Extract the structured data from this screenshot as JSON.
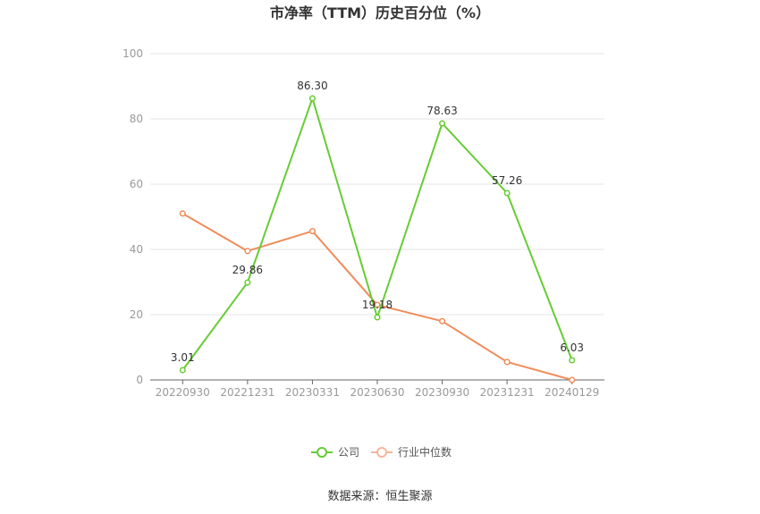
{
  "chart_data": {
    "type": "line",
    "title": "市净率（TTM）历史百分位（%）",
    "categories": [
      "20220930",
      "20221231",
      "20230331",
      "20230630",
      "20230930",
      "20231231",
      "20240129"
    ],
    "series": [
      {
        "name": "公司",
        "values": [
          3.01,
          29.86,
          86.3,
          19.18,
          78.63,
          57.26,
          6.03
        ],
        "labels": [
          "3.01",
          "29.86",
          "86.30",
          "19.18",
          "78.63",
          "57.26",
          "6.03"
        ],
        "color": "#66cc33"
      },
      {
        "name": "行业中位数",
        "values": [
          51.0,
          39.5,
          45.6,
          23.0,
          18.0,
          5.5,
          0.0
        ],
        "color": "#f08c5a"
      }
    ],
    "ylim": [
      0,
      100
    ],
    "yticks": [
      "0",
      "20",
      "40",
      "60",
      "80",
      "100"
    ],
    "grid": true,
    "legend": "bottom-center"
  },
  "source": "数据来源：恒生聚源"
}
